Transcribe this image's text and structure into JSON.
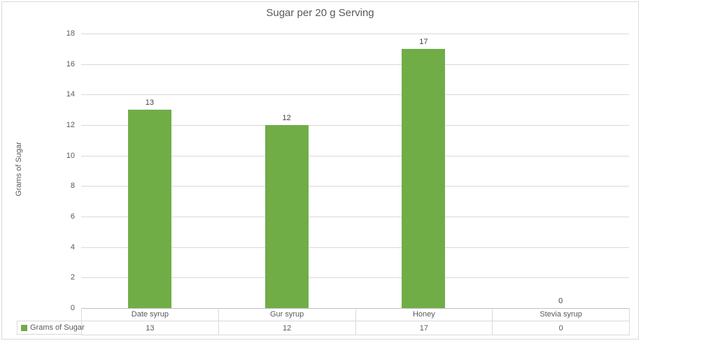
{
  "chart_data": {
    "type": "bar",
    "title": "Sugar per 20 g Serving",
    "xlabel": "",
    "ylabel": "Grams of Sugar",
    "categories": [
      "Date syrup",
      "Gur syrup",
      "Honey",
      "Stevia syrup"
    ],
    "series": [
      {
        "name": "Grams of Sugar",
        "values": [
          13,
          12,
          17,
          0
        ]
      }
    ],
    "data_labels": [
      "13",
      "12",
      "17",
      "0"
    ],
    "ylim": [
      0,
      18
    ],
    "yticks": [
      0,
      2,
      4,
      6,
      8,
      10,
      12,
      14,
      16,
      18
    ],
    "grid": true,
    "legend_position": "bottom-table"
  },
  "data_table": {
    "legend_label": "Grams of Sugar",
    "column_headers": [
      "Date syrup",
      "Gur syrup",
      "Honey",
      "Stevia syrup"
    ],
    "rows": [
      [
        "13",
        "12",
        "17",
        "0"
      ]
    ]
  },
  "colors": {
    "bar": "#70ad47",
    "title_text": "#595959",
    "axis_text": "#595959",
    "data_label_text": "#404040",
    "gridline": "#d9d9d9",
    "axis_line": "#bfbfbf",
    "table_border": "#d9d9d9",
    "frame_border": "#d9d9d9",
    "background": "#ffffff"
  }
}
